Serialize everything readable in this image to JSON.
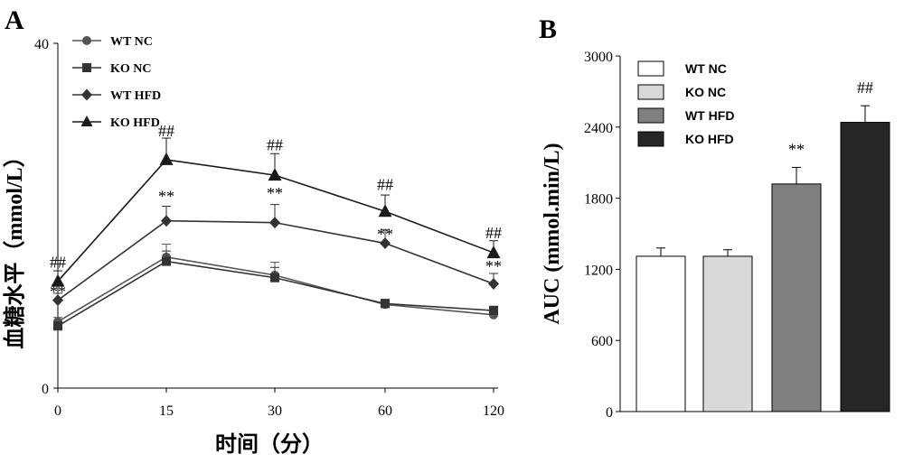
{
  "chart_data": [
    {
      "panel": "A",
      "type": "line",
      "xlabel": "时间（分）",
      "ylabel": "血糖水平（mmol/L）",
      "categories": [
        "0",
        "15",
        "30",
        "60",
        "120"
      ],
      "ylim": [
        0,
        40
      ],
      "yticks": [
        "0",
        "40"
      ],
      "grid": false,
      "legend_position": "top-left",
      "series": [
        {
          "name": "WT NC",
          "marker": "circle",
          "color": "#555555",
          "values": [
            7.7,
            15.2,
            13.1,
            9.7,
            8.5
          ],
          "errors": [
            0.5,
            1.5,
            1.5,
            0.5,
            0.5
          ]
        },
        {
          "name": "KO NC",
          "marker": "square",
          "color": "#333333",
          "values": [
            7.2,
            14.7,
            12.8,
            9.8,
            9.0
          ],
          "errors": [
            0.5,
            1.2,
            1.2,
            0.5,
            0.5
          ]
        },
        {
          "name": "WT HFD",
          "marker": "diamond",
          "color": "#333333",
          "values": [
            10.2,
            19.4,
            19.2,
            16.8,
            12.1
          ],
          "errors": [
            0.8,
            1.7,
            2.1,
            1.6,
            1.2
          ]
        },
        {
          "name": "KO HFD",
          "marker": "triangle",
          "color": "#1a1a1a",
          "values": [
            12.4,
            26.5,
            24.7,
            20.5,
            15.7
          ],
          "errors": [
            1.2,
            2.5,
            2.5,
            1.9,
            1.4
          ]
        }
      ],
      "annotations": [
        {
          "text": "##",
          "x": "0",
          "y": 14.0
        },
        {
          "text": "**",
          "x": "0",
          "y": 10.6
        },
        {
          "text": "##",
          "x": "15",
          "y": 29.2
        },
        {
          "text": "**",
          "x": "15",
          "y": 21.6
        },
        {
          "text": "##",
          "x": "30",
          "y": 27.6
        },
        {
          "text": "**",
          "x": "30",
          "y": 22.0
        },
        {
          "text": "##",
          "x": "60",
          "y": 23.0
        },
        {
          "text": "**",
          "x": "60",
          "y": 17.2
        },
        {
          "text": "##",
          "x": "120",
          "y": 17.4
        },
        {
          "text": "**",
          "x": "120",
          "y": 13.5
        }
      ]
    },
    {
      "panel": "B",
      "type": "bar",
      "ylabel": "AUC (mmol.min/L)",
      "ylim": [
        0,
        3000
      ],
      "yticks": [
        "0",
        "600",
        "1200",
        "1800",
        "2400",
        "3000"
      ],
      "grid": false,
      "legend_position": "top-left",
      "categories": [
        "WT NC",
        "KO NC",
        "WT HFD",
        "KO HFD"
      ],
      "values": [
        1310,
        1310,
        1920,
        2440
      ],
      "errors": [
        70,
        55,
        140,
        140
      ],
      "colors": [
        "#ffffff",
        "#d9d9d9",
        "#7f7f7f",
        "#262626"
      ],
      "annotations": [
        {
          "text": "**",
          "category": "WT HFD"
        },
        {
          "text": "##",
          "category": "KO HFD"
        }
      ]
    }
  ]
}
